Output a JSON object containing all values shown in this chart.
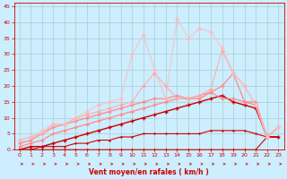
{
  "xlabel": "Vent moyen/en rafales ( km/h )",
  "bg_color": "#cceeff",
  "grid_color": "#aacccc",
  "xlim": [
    -0.5,
    23.5
  ],
  "ylim": [
    0,
    46
  ],
  "yticks": [
    0,
    5,
    10,
    15,
    20,
    25,
    30,
    35,
    40,
    45
  ],
  "xticks": [
    0,
    1,
    2,
    3,
    4,
    5,
    6,
    7,
    8,
    9,
    10,
    11,
    12,
    13,
    14,
    15,
    16,
    17,
    18,
    19,
    20,
    21,
    22,
    23
  ],
  "series": [
    {
      "x": [
        0,
        1,
        2,
        3,
        4,
        5,
        6,
        7,
        8,
        9,
        10,
        11,
        12,
        13,
        14,
        15,
        16,
        17,
        18,
        19,
        20,
        21,
        22,
        23
      ],
      "y": [
        0,
        0,
        0,
        0,
        0,
        0,
        0,
        0,
        0,
        0,
        0,
        0,
        0,
        0,
        0,
        0,
        0,
        0,
        0,
        0,
        0,
        0,
        4,
        4
      ],
      "color": "#cc0000",
      "lw": 0.8,
      "marker": "+",
      "ms": 2.0,
      "alpha": 1.0
    },
    {
      "x": [
        0,
        1,
        2,
        3,
        4,
        5,
        6,
        7,
        8,
        9,
        10,
        11,
        12,
        13,
        14,
        15,
        16,
        17,
        18,
        19,
        20,
        21,
        22,
        23
      ],
      "y": [
        0,
        0,
        1,
        1,
        1,
        2,
        2,
        3,
        3,
        4,
        4,
        5,
        5,
        5,
        5,
        5,
        5,
        6,
        6,
        6,
        6,
        5,
        4,
        4
      ],
      "color": "#cc0000",
      "lw": 0.8,
      "marker": "+",
      "ms": 2.0,
      "alpha": 1.0
    },
    {
      "x": [
        0,
        1,
        2,
        3,
        4,
        5,
        6,
        7,
        8,
        9,
        10,
        11,
        12,
        13,
        14,
        15,
        16,
        17,
        18,
        19,
        20,
        21,
        22,
        23
      ],
      "y": [
        0,
        1,
        1,
        2,
        3,
        4,
        5,
        6,
        7,
        8,
        9,
        10,
        11,
        12,
        13,
        14,
        15,
        16,
        17,
        15,
        14,
        13,
        4,
        4
      ],
      "color": "#cc0000",
      "lw": 1.0,
      "marker": "+",
      "ms": 2.5,
      "alpha": 1.0
    },
    {
      "x": [
        0,
        1,
        2,
        3,
        4,
        5,
        6,
        7,
        8,
        9,
        10,
        11,
        12,
        13,
        14,
        15,
        16,
        17,
        18,
        19,
        20,
        21,
        22,
        23
      ],
      "y": [
        1,
        2,
        3,
        5,
        6,
        7,
        8,
        9,
        10,
        11,
        12,
        13,
        14,
        15,
        16,
        16,
        16,
        18,
        16,
        16,
        15,
        15,
        4,
        7
      ],
      "color": "#ff8888",
      "lw": 1.0,
      "marker": "+",
      "ms": 2.5,
      "alpha": 0.9
    },
    {
      "x": [
        0,
        1,
        2,
        3,
        4,
        5,
        6,
        7,
        8,
        9,
        10,
        11,
        12,
        13,
        14,
        15,
        16,
        17,
        18,
        19,
        20,
        21,
        22,
        23
      ],
      "y": [
        2,
        3,
        5,
        7,
        8,
        9,
        10,
        11,
        12,
        13,
        14,
        15,
        16,
        16,
        17,
        16,
        17,
        18,
        20,
        24,
        15,
        14,
        4,
        7
      ],
      "color": "#ff8888",
      "lw": 1.0,
      "marker": "+",
      "ms": 2.5,
      "alpha": 0.9
    },
    {
      "x": [
        0,
        1,
        2,
        3,
        4,
        5,
        6,
        7,
        8,
        9,
        10,
        11,
        12,
        13,
        14,
        15,
        16,
        17,
        18,
        19,
        20,
        21,
        22,
        23
      ],
      "y": [
        3,
        4,
        5,
        8,
        8,
        10,
        11,
        12,
        13,
        14,
        15,
        20,
        24,
        20,
        16,
        16,
        17,
        19,
        31,
        24,
        20,
        14,
        4,
        7
      ],
      "color": "#ffaaaa",
      "lw": 0.9,
      "marker": "D",
      "ms": 1.8,
      "alpha": 0.85
    },
    {
      "x": [
        0,
        1,
        2,
        3,
        4,
        5,
        6,
        7,
        8,
        9,
        10,
        11,
        12,
        13,
        14,
        15,
        16,
        17,
        18,
        19,
        20,
        21,
        22,
        23
      ],
      "y": [
        3,
        4,
        6,
        8,
        8,
        10,
        12,
        14,
        15,
        16,
        30,
        36,
        25,
        16,
        41,
        35,
        38,
        37,
        32,
        24,
        20,
        14,
        4,
        7
      ],
      "color": "#ffbbbb",
      "lw": 0.9,
      "marker": "D",
      "ms": 1.8,
      "alpha": 0.75
    }
  ],
  "arrow_color": "#cc0000"
}
